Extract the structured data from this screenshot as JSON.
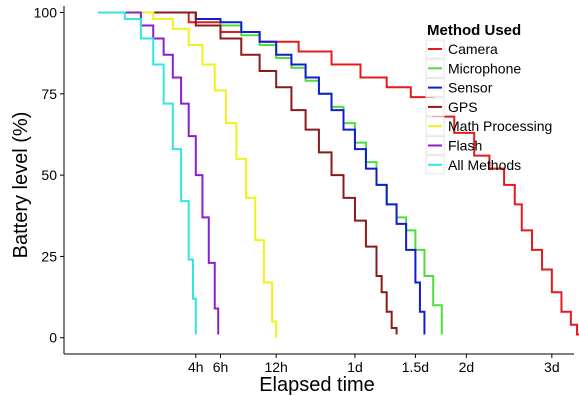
{
  "chart_data": {
    "type": "line",
    "title": "",
    "xlabel": "Elapsed time",
    "ylabel": "Battery level (%)",
    "x_unit": "hours",
    "xlim": [
      0,
      86
    ],
    "ylim": [
      -5,
      102
    ],
    "x_ticks": [
      {
        "value": 4,
        "label": "4h"
      },
      {
        "value": 6,
        "label": "6h"
      },
      {
        "value": 12,
        "label": "12h"
      },
      {
        "value": 24,
        "label": "1d"
      },
      {
        "value": 36,
        "label": "1.5d"
      },
      {
        "value": 48,
        "label": "2d"
      },
      {
        "value": 72,
        "label": "3d"
      }
    ],
    "y_ticks": [
      {
        "value": 0,
        "label": "0"
      },
      {
        "value": 25,
        "label": "25"
      },
      {
        "value": 50,
        "label": "50"
      },
      {
        "value": 75,
        "label": "75"
      },
      {
        "value": 100,
        "label": "100"
      }
    ],
    "grid": false,
    "step": true,
    "legend": {
      "title": "Method Used",
      "position": "top-right"
    },
    "series": [
      {
        "name": "Camera",
        "color": "#e41a1c",
        "x": [
          0.05,
          1.6,
          3.5,
          6,
          10,
          15,
          20,
          25,
          30,
          35,
          40,
          45,
          50,
          54,
          58,
          61,
          63,
          66,
          69,
          72,
          75,
          78,
          80,
          81
        ],
        "y": [
          100,
          100,
          97,
          94,
          91,
          88,
          84,
          80,
          77,
          74,
          68,
          63,
          56,
          52,
          47,
          41,
          33,
          27,
          21,
          14,
          8,
          4,
          1,
          0
        ]
      },
      {
        "name": "Microphone",
        "color": "#4dde3a",
        "x": [
          0.05,
          2,
          4,
          6,
          8,
          10,
          12,
          14,
          16,
          18,
          20,
          22,
          24,
          26,
          28,
          30,
          32,
          34,
          36,
          38,
          40,
          42
        ],
        "y": [
          100,
          100,
          98,
          96,
          93,
          90,
          86,
          83,
          79,
          75,
          71,
          66,
          60,
          54,
          47,
          41,
          37,
          33,
          27,
          19,
          10,
          1
        ]
      },
      {
        "name": "Sensor",
        "color": "#0f1fcf",
        "x": [
          0.05,
          2,
          4,
          6,
          8,
          10,
          12,
          14,
          16,
          18,
          20,
          22,
          24,
          26,
          28,
          30,
          32,
          34,
          36,
          37,
          38
        ],
        "y": [
          100,
          100,
          98,
          97,
          94,
          91,
          87,
          84,
          80,
          75,
          70,
          64,
          58,
          52,
          47,
          41,
          35,
          27,
          17,
          8,
          1
        ]
      },
      {
        "name": "GPS",
        "color": "#8b1a1a",
        "x": [
          0.05,
          2,
          4,
          6,
          8,
          10,
          12,
          14,
          16,
          18,
          20,
          22,
          24,
          26,
          28,
          29,
          30,
          31,
          32
        ],
        "y": [
          100,
          100,
          96,
          92,
          87,
          82,
          77,
          70,
          64,
          57,
          50,
          43,
          36,
          28,
          19,
          14,
          8,
          3,
          1
        ]
      },
      {
        "name": "Math Processing",
        "color": "#f2f21a",
        "x": [
          0.05,
          1.5,
          2.5,
          3.5,
          4.5,
          5.5,
          6.5,
          7.5,
          8.5,
          9.5,
          10.5,
          11.5,
          12
        ],
        "y": [
          100,
          98,
          95,
          90,
          84,
          76,
          66,
          55,
          43,
          30,
          17,
          5,
          0
        ]
      },
      {
        "name": "Flash",
        "color": "#8b1fcf",
        "x": [
          0.05,
          1,
          1.5,
          2,
          2.5,
          3,
          3.5,
          4,
          4.5,
          5,
          5.5,
          5.8
        ],
        "y": [
          100,
          96,
          92,
          87,
          80,
          72,
          62,
          50,
          37,
          23,
          9,
          1
        ]
      },
      {
        "name": "All Methods",
        "color": "#33e5e5",
        "x": [
          0.05,
          0.5,
          1,
          1.5,
          2,
          2.5,
          3,
          3.5,
          3.8,
          4
        ],
        "y": [
          100,
          98,
          92,
          84,
          72,
          58,
          42,
          24,
          12,
          1
        ]
      }
    ]
  }
}
